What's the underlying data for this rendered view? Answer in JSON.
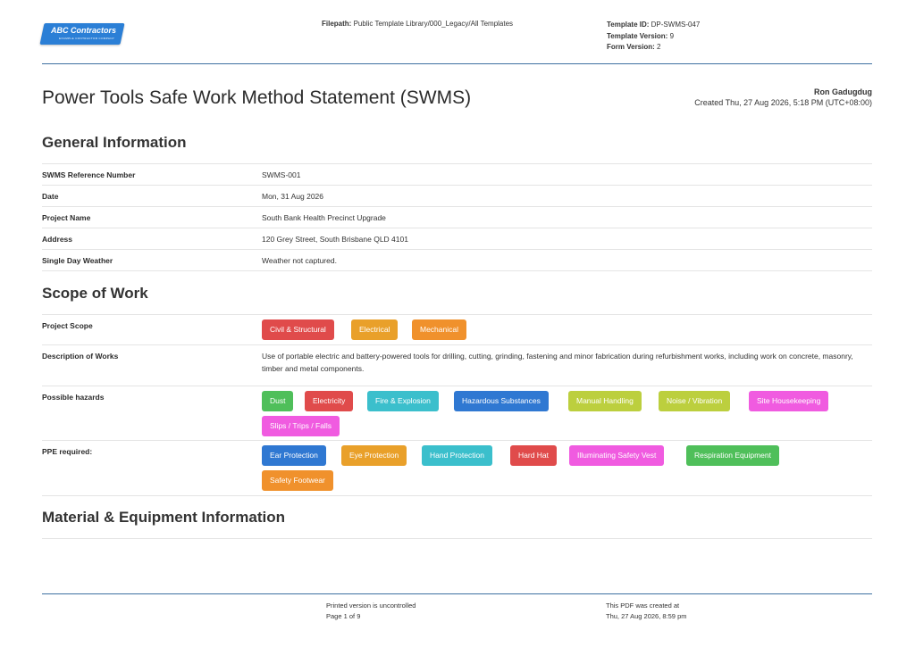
{
  "header": {
    "logo_name": "ABC Contractors",
    "logo_tagline": "EXAMPLE CONTRACTOR COMPANY",
    "filepath_label": "Filepath:",
    "filepath_value": "Public Template Library/000_Legacy/All Templates",
    "template_id_label": "Template ID:",
    "template_id_value": "DP-SWMS-047",
    "template_version_label": "Template Version:",
    "template_version_value": "9",
    "form_version_label": "Form Version:",
    "form_version_value": "2"
  },
  "document": {
    "title": "Power Tools Safe Work Method Statement (SWMS)",
    "author": "Ron Gadugdug",
    "created": "Created Thu, 27 Aug 2026, 5:18 PM (UTC+08:00)"
  },
  "general_information": {
    "heading": "General Information",
    "rows": [
      {
        "label": "SWMS Reference Number",
        "value": "SWMS-001"
      },
      {
        "label": "Date",
        "value": "Mon, 31 Aug 2026"
      },
      {
        "label": "Project Name",
        "value": "South Bank Health Precinct Upgrade"
      },
      {
        "label": "Address",
        "value": "120 Grey Street, South Brisbane QLD 4101"
      },
      {
        "label": "Single Day Weather",
        "value": "Weather not captured."
      }
    ]
  },
  "scope_of_work": {
    "heading": "Scope of Work",
    "project_scope_label": "Project Scope",
    "project_scope_tags": [
      {
        "text": "Civil & Structural",
        "color": "#e04b4b"
      },
      {
        "text": "Electrical",
        "color": "#e9a02a"
      },
      {
        "text": "Mechanical",
        "color": "#f0912c"
      }
    ],
    "description_label": "Description of Works",
    "description_value": "Use of portable electric and battery-powered tools for drilling, cutting, grinding, fastening and minor fabrication during refurbishment works, including work on concrete, masonry, timber and metal components.",
    "hazards_label": "Possible hazards",
    "hazards_tags": [
      {
        "text": "Dust",
        "color": "#4fbf5a"
      },
      {
        "text": "Electricity",
        "color": "#e04b4b"
      },
      {
        "text": "Fire & Explosion",
        "color": "#3bbfcc"
      },
      {
        "text": "Hazardous Substances",
        "color": "#2f78d2"
      },
      {
        "text": "Manual Handling",
        "color": "#bccf3e"
      },
      {
        "text": "Noise / Vibration",
        "color": "#bccf3e"
      },
      {
        "text": "Site Housekeeping",
        "color": "#f05be0"
      },
      {
        "text": "Slips / Trips / Falls",
        "color": "#f05be0"
      }
    ],
    "ppe_label": "PPE required:",
    "ppe_tags": [
      {
        "text": "Ear Protection",
        "color": "#2f78d2"
      },
      {
        "text": "Eye Protection",
        "color": "#e9a02a"
      },
      {
        "text": "Hand Protection",
        "color": "#3bbfcc"
      },
      {
        "text": "Hard Hat",
        "color": "#e04b4b"
      },
      {
        "text": "Illuminating Safety Vest",
        "color": "#f05be0"
      },
      {
        "text": "Respiration Equipment",
        "color": "#4fbf5a"
      },
      {
        "text": "Safety Footwear",
        "color": "#f0912c"
      }
    ]
  },
  "material_equipment": {
    "heading": "Material & Equipment Information"
  },
  "footer": {
    "uncontrolled": "Printed version is uncontrolled",
    "page": "Page 1 of 9",
    "pdf_created_label": "This PDF was created at",
    "pdf_created_value": "Thu, 27 Aug 2026, 8:59 pm"
  }
}
